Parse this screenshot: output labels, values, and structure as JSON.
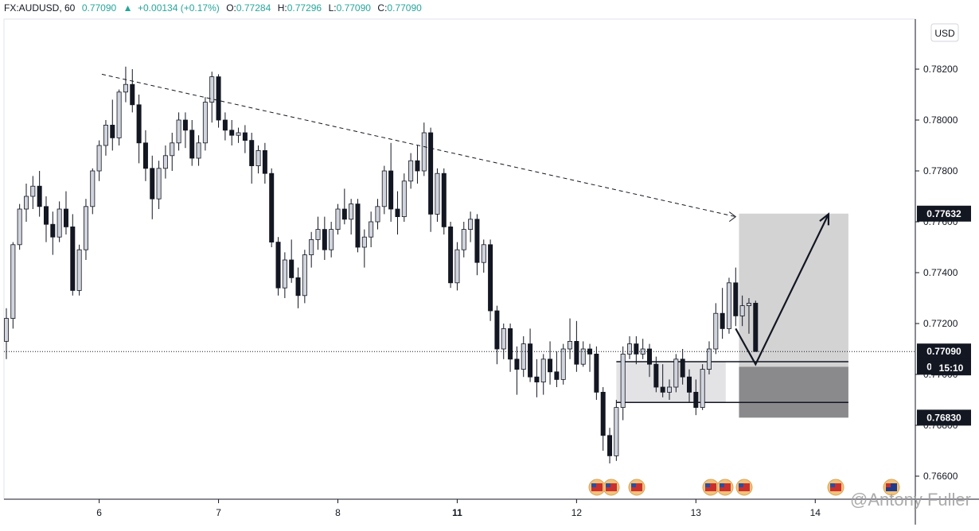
{
  "header": {
    "symbol": "FX:AUDUSD, 60",
    "last": "0.77090",
    "change": "+0.00134 (+0.17%)",
    "o_label": "O:",
    "o": "0.77284",
    "h_label": "H:",
    "h": "0.77296",
    "l_label": "L:",
    "l": "0.77090",
    "c_label": "C:",
    "c": "0.77090"
  },
  "currency_button": "USD",
  "watermark": "@Antony Fuller",
  "countdown": "15:10",
  "colors": {
    "candle_up": "#d1d4dc",
    "candle_down": "#131722",
    "zone_target": "#d3d3d4",
    "zone_stop": "#8a8a8d",
    "zone_entry": "#e3e3e5",
    "tag_bg": "#131722",
    "header_value": "#26a69a"
  },
  "chart_data": {
    "type": "candlestick",
    "y_ticks": [
      "0.78200",
      "0.78000",
      "0.77800",
      "0.77600",
      "0.77400",
      "0.77200",
      "0.77000",
      "0.76800",
      "0.76600"
    ],
    "y_tick_values": [
      0.782,
      0.78,
      0.778,
      0.776,
      0.774,
      0.772,
      0.77,
      0.768,
      0.766
    ],
    "x_ticks": [
      "6",
      "7",
      "8",
      "11",
      "12",
      "13",
      "14"
    ],
    "x_tick_index": [
      14,
      32,
      50,
      68,
      86,
      104,
      122
    ],
    "price_tags": [
      {
        "label": "0.77632",
        "value": 0.77632
      },
      {
        "label": "0.77090",
        "value": 0.7709
      },
      {
        "label": "0.77030",
        "value": 0.7703
      },
      {
        "label": "0.76830",
        "value": 0.7683
      }
    ],
    "current_price": 0.7709,
    "candles": [
      [
        0.7713,
        0.7726,
        0.7706,
        0.7722
      ],
      [
        0.7722,
        0.7752,
        0.7718,
        0.7751
      ],
      [
        0.7751,
        0.7767,
        0.7749,
        0.7765
      ],
      [
        0.7765,
        0.7775,
        0.776,
        0.777
      ],
      [
        0.777,
        0.7778,
        0.7765,
        0.7774
      ],
      [
        0.7774,
        0.778,
        0.7762,
        0.7766
      ],
      [
        0.7766,
        0.777,
        0.7752,
        0.7759
      ],
      [
        0.7759,
        0.7764,
        0.7747,
        0.7754
      ],
      [
        0.7754,
        0.7768,
        0.7752,
        0.7765
      ],
      [
        0.7765,
        0.7772,
        0.7755,
        0.7758
      ],
      [
        0.7758,
        0.7763,
        0.7731,
        0.7733
      ],
      [
        0.7733,
        0.7751,
        0.7731,
        0.7749
      ],
      [
        0.7749,
        0.7769,
        0.7745,
        0.7766
      ],
      [
        0.7766,
        0.7781,
        0.7763,
        0.778
      ],
      [
        0.778,
        0.7792,
        0.7776,
        0.779
      ],
      [
        0.779,
        0.78,
        0.7786,
        0.7798
      ],
      [
        0.7798,
        0.7808,
        0.7788,
        0.7793
      ],
      [
        0.7793,
        0.7812,
        0.779,
        0.7811
      ],
      [
        0.7811,
        0.7821,
        0.7807,
        0.7814
      ],
      [
        0.7814,
        0.782,
        0.7803,
        0.7806
      ],
      [
        0.7806,
        0.781,
        0.7783,
        0.7791
      ],
      [
        0.7791,
        0.7796,
        0.7776,
        0.7781
      ],
      [
        0.7781,
        0.7786,
        0.7761,
        0.7769
      ],
      [
        0.7769,
        0.7784,
        0.7765,
        0.7781
      ],
      [
        0.7781,
        0.779,
        0.7777,
        0.7786
      ],
      [
        0.7786,
        0.7795,
        0.778,
        0.7791
      ],
      [
        0.7791,
        0.7803,
        0.7788,
        0.78
      ],
      [
        0.78,
        0.7803,
        0.7789,
        0.7796
      ],
      [
        0.7796,
        0.78,
        0.7782,
        0.7785
      ],
      [
        0.7785,
        0.7794,
        0.7782,
        0.7791
      ],
      [
        0.7791,
        0.7809,
        0.7788,
        0.7807
      ],
      [
        0.7807,
        0.7819,
        0.7799,
        0.7817
      ],
      [
        0.7817,
        0.7818,
        0.7797,
        0.78
      ],
      [
        0.78,
        0.7803,
        0.7792,
        0.7796
      ],
      [
        0.7796,
        0.78,
        0.779,
        0.7794
      ],
      [
        0.7794,
        0.7797,
        0.7791,
        0.7795
      ],
      [
        0.7795,
        0.7798,
        0.7787,
        0.7792
      ],
      [
        0.7792,
        0.7795,
        0.7775,
        0.7782
      ],
      [
        0.7782,
        0.779,
        0.7779,
        0.7788
      ],
      [
        0.7788,
        0.7791,
        0.7775,
        0.7779
      ],
      [
        0.7779,
        0.7781,
        0.775,
        0.7752
      ],
      [
        0.7752,
        0.7754,
        0.7731,
        0.7734
      ],
      [
        0.7734,
        0.7748,
        0.773,
        0.7745
      ],
      [
        0.7745,
        0.7753,
        0.7736,
        0.7738
      ],
      [
        0.7738,
        0.7742,
        0.7726,
        0.7731
      ],
      [
        0.7731,
        0.7749,
        0.7728,
        0.7747
      ],
      [
        0.7747,
        0.7756,
        0.7742,
        0.7753
      ],
      [
        0.7753,
        0.7762,
        0.7749,
        0.7757
      ],
      [
        0.7757,
        0.7762,
        0.7745,
        0.7749
      ],
      [
        0.7749,
        0.776,
        0.7746,
        0.7757
      ],
      [
        0.7757,
        0.7767,
        0.7755,
        0.7765
      ],
      [
        0.7765,
        0.7773,
        0.7759,
        0.7761
      ],
      [
        0.7761,
        0.7769,
        0.7755,
        0.7767
      ],
      [
        0.7767,
        0.7769,
        0.7748,
        0.775
      ],
      [
        0.775,
        0.7757,
        0.7742,
        0.7754
      ],
      [
        0.7754,
        0.7764,
        0.775,
        0.776
      ],
      [
        0.776,
        0.7769,
        0.7757,
        0.7766
      ],
      [
        0.7766,
        0.7782,
        0.7763,
        0.778
      ],
      [
        0.778,
        0.7791,
        0.776,
        0.7765
      ],
      [
        0.7765,
        0.7772,
        0.7755,
        0.7762
      ],
      [
        0.7762,
        0.7779,
        0.776,
        0.7776
      ],
      [
        0.7776,
        0.7787,
        0.7773,
        0.7784
      ],
      [
        0.7784,
        0.779,
        0.7775,
        0.778
      ],
      [
        0.778,
        0.7799,
        0.7778,
        0.7795
      ],
      [
        0.7795,
        0.7797,
        0.7756,
        0.7763
      ],
      [
        0.7763,
        0.7781,
        0.776,
        0.7779
      ],
      [
        0.7779,
        0.7781,
        0.7755,
        0.7758
      ],
      [
        0.7758,
        0.776,
        0.7734,
        0.7736
      ],
      [
        0.7736,
        0.7752,
        0.7733,
        0.7749
      ],
      [
        0.7749,
        0.776,
        0.7746,
        0.7757
      ],
      [
        0.7757,
        0.7764,
        0.7752,
        0.7761
      ],
      [
        0.7761,
        0.7763,
        0.7739,
        0.7744
      ],
      [
        0.7744,
        0.7753,
        0.774,
        0.7751
      ],
      [
        0.7751,
        0.7753,
        0.7721,
        0.7725
      ],
      [
        0.7725,
        0.7727,
        0.7704,
        0.771
      ],
      [
        0.771,
        0.772,
        0.7706,
        0.7718
      ],
      [
        0.7718,
        0.772,
        0.7701,
        0.7706
      ],
      [
        0.7706,
        0.7711,
        0.7692,
        0.7702
      ],
      [
        0.7702,
        0.7715,
        0.7699,
        0.7712
      ],
      [
        0.7712,
        0.7718,
        0.7697,
        0.7699
      ],
      [
        0.7699,
        0.7706,
        0.7691,
        0.7697
      ],
      [
        0.7697,
        0.7708,
        0.7692,
        0.7706
      ],
      [
        0.7706,
        0.7713,
        0.7696,
        0.7701
      ],
      [
        0.7701,
        0.7709,
        0.7695,
        0.7698
      ],
      [
        0.7698,
        0.7712,
        0.7696,
        0.771
      ],
      [
        0.771,
        0.7722,
        0.7706,
        0.7713
      ],
      [
        0.7713,
        0.7721,
        0.7701,
        0.7704
      ],
      [
        0.7704,
        0.7713,
        0.7703,
        0.771
      ],
      [
        0.771,
        0.7712,
        0.7701,
        0.7708
      ],
      [
        0.7708,
        0.7711,
        0.769,
        0.7693
      ],
      [
        0.7693,
        0.7695,
        0.767,
        0.7676
      ],
      [
        0.7676,
        0.7679,
        0.7665,
        0.7668
      ],
      [
        0.7668,
        0.769,
        0.7666,
        0.7687
      ],
      [
        0.7687,
        0.7711,
        0.7682,
        0.7708
      ],
      [
        0.7708,
        0.7715,
        0.7706,
        0.7712
      ],
      [
        0.7712,
        0.7715,
        0.7704,
        0.7708
      ],
      [
        0.7708,
        0.7714,
        0.7706,
        0.771
      ],
      [
        0.771,
        0.7712,
        0.7699,
        0.7704
      ],
      [
        0.7704,
        0.7707,
        0.7693,
        0.7695
      ],
      [
        0.7695,
        0.7704,
        0.7691,
        0.7693
      ],
      [
        0.7693,
        0.7698,
        0.769,
        0.7695
      ],
      [
        0.7695,
        0.7708,
        0.7693,
        0.7706
      ],
      [
        0.7706,
        0.771,
        0.7696,
        0.7699
      ],
      [
        0.7699,
        0.7702,
        0.7689,
        0.7693
      ],
      [
        0.7693,
        0.7698,
        0.7684,
        0.7687
      ],
      [
        0.7687,
        0.7704,
        0.7686,
        0.7702
      ],
      [
        0.7702,
        0.7713,
        0.77,
        0.771
      ],
      [
        0.771,
        0.7728,
        0.7708,
        0.7724
      ],
      [
        0.7724,
        0.7734,
        0.7714,
        0.7718
      ],
      [
        0.7718,
        0.7738,
        0.7716,
        0.7736
      ],
      [
        0.7736,
        0.7742,
        0.7719,
        0.7723
      ],
      [
        0.7723,
        0.7731,
        0.7719,
        0.7727
      ],
      [
        0.7727,
        0.773,
        0.7716,
        0.7728
      ],
      [
        0.7728,
        0.7729,
        0.7709,
        0.7709
      ]
    ],
    "trendline": [
      [
        14.4,
        0.7818
      ],
      [
        110,
        0.7762
      ]
    ],
    "projection_path": [
      [
        110,
        0.7718
      ],
      [
        113,
        0.7704
      ],
      [
        124,
        0.7763
      ]
    ],
    "position": {
      "entry": 0.7703,
      "stop": 0.7683,
      "target": 0.77632,
      "entry_box_low": 0.7689,
      "entry_box_high": 0.7705
    }
  }
}
